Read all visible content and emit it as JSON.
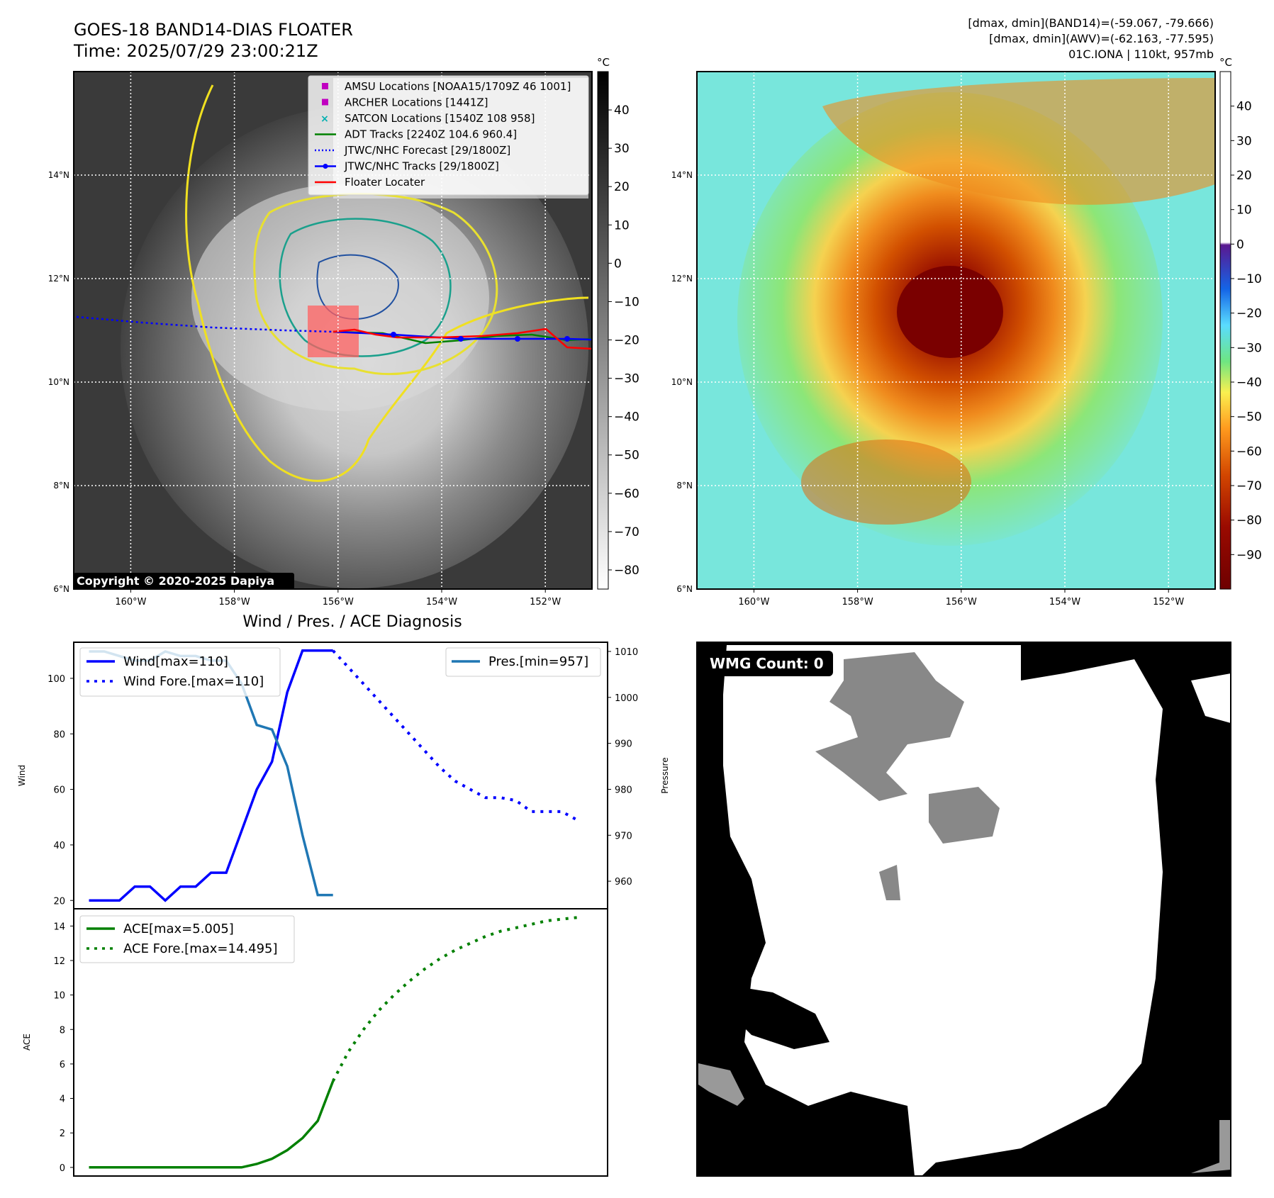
{
  "header": {
    "title": "GOES-18 BAND14-DIAS FLOATER",
    "time": "Time: 2025/07/29 23:00:21Z",
    "info1": "[dmax, dmin](BAND14)=(-59.067, -79.666)",
    "info2": "[dmax, dmin](AWV)=(-62.163, -77.595)",
    "info3": "01C.IONA | 110kt, 957mb"
  },
  "map_axes": {
    "lon_ticks": [
      "160°W",
      "158°W",
      "156°W",
      "154°W",
      "152°W"
    ],
    "lat_ticks": [
      "14°N",
      "12°N",
      "10°N",
      "8°N",
      "6°N"
    ],
    "lon_range": [
      -161.1,
      -151.1
    ],
    "lat_range": [
      6.0,
      16.0
    ]
  },
  "colorbar": {
    "unit": "°C",
    "left_ticks": [
      "40",
      "30",
      "20",
      "10",
      "0",
      "−10",
      "−20",
      "−30",
      "−40",
      "−50",
      "−60",
      "−70",
      "−80"
    ],
    "right_ticks": [
      "40",
      "30",
      "20",
      "10",
      "0",
      "−10",
      "−20",
      "−30",
      "−40",
      "−50",
      "−60",
      "−70",
      "−80",
      "−90"
    ]
  },
  "legend": {
    "items": [
      {
        "label": "AMSU Locations [NOAA15/1709Z 46 1001]",
        "color": "#c000c0",
        "kind": "square"
      },
      {
        "label": "ARCHER Locations [1441Z]",
        "color": "#c000c0",
        "kind": "square"
      },
      {
        "label": "SATCON Locations [1540Z 108 958]",
        "color": "#00b0b0",
        "kind": "x"
      },
      {
        "label": "ADT Tracks [2240Z 104.6 960.4]",
        "color": "#008000",
        "kind": "line"
      },
      {
        "label": "JTWC/NHC Forecast [29/1800Z]",
        "color": "#0000ff",
        "kind": "dotted"
      },
      {
        "label": "JTWC/NHC Tracks [29/1800Z]",
        "color": "#0000ff",
        "kind": "line-dot"
      },
      {
        "label": "Floater Locater",
        "color": "#ff0000",
        "kind": "line"
      }
    ]
  },
  "copyright": "Copyright © 2020-2025 Dapiya",
  "wmg": {
    "label": "WMG Count: 0"
  },
  "diagnosis": {
    "title": "Wind / Pres. / ACE Diagnosis"
  },
  "chart_data": [
    {
      "type": "line",
      "title": "Wind / Pres. / ACE Diagnosis",
      "ylabel": "Wind",
      "y2label": "Pressure",
      "ylim": [
        17,
        113
      ],
      "y2lim": [
        954,
        1012
      ],
      "yticks": [
        20,
        40,
        60,
        80,
        100
      ],
      "y2ticks": [
        960,
        970,
        980,
        990,
        1000,
        1010
      ],
      "series": [
        {
          "name": "Wind[max=110]",
          "color": "#0000ff",
          "style": "solid",
          "axis": "left",
          "x": [
            0,
            1,
            2,
            3,
            4,
            5,
            6,
            7,
            8,
            9,
            10,
            11,
            12,
            13,
            14,
            15,
            16
          ],
          "values": [
            20,
            20,
            20,
            25,
            25,
            20,
            25,
            25,
            30,
            30,
            45,
            60,
            70,
            95,
            110,
            110,
            110
          ]
        },
        {
          "name": "Wind Fore.[max=110]",
          "color": "#0000ff",
          "style": "dotted",
          "axis": "left",
          "x": [
            16,
            17,
            18,
            19,
            20,
            21,
            22,
            23,
            24,
            25,
            26,
            27,
            28,
            29,
            30,
            31,
            32
          ],
          "values": [
            110,
            104,
            98,
            92,
            86,
            80,
            74,
            68,
            63,
            60,
            57,
            57,
            56,
            52,
            52,
            52,
            49
          ]
        },
        {
          "name": "Pres.[min=957]",
          "color": "#1f77b4",
          "style": "solid",
          "axis": "right",
          "x": [
            0,
            1,
            2,
            3,
            4,
            5,
            6,
            7,
            8,
            9,
            10,
            11,
            12,
            13,
            14,
            15,
            16
          ],
          "values": [
            1010,
            1010,
            1009,
            1008,
            1008,
            1010,
            1009,
            1009,
            1008,
            1008,
            1003,
            994,
            993,
            985,
            970,
            957,
            957
          ]
        }
      ]
    },
    {
      "type": "line",
      "ylabel": "ACE",
      "ylim": [
        -0.5,
        15
      ],
      "yticks": [
        0,
        2,
        4,
        6,
        8,
        10,
        12,
        14
      ],
      "series": [
        {
          "name": "ACE[max=5.005]",
          "color": "#008000",
          "style": "solid",
          "x": [
            0,
            1,
            2,
            3,
            4,
            5,
            6,
            7,
            8,
            9,
            10,
            11,
            12,
            13,
            14,
            15,
            16
          ],
          "values": [
            0,
            0,
            0,
            0,
            0,
            0,
            0,
            0,
            0,
            0,
            0,
            0.2,
            0.5,
            1.0,
            1.7,
            2.7,
            5.005
          ]
        },
        {
          "name": "ACE Fore.[max=14.495]",
          "color": "#008000",
          "style": "dotted",
          "x": [
            16,
            17,
            18,
            19,
            20,
            21,
            22,
            23,
            24,
            25,
            26,
            27,
            28,
            29,
            30,
            31,
            32
          ],
          "values": [
            5.005,
            6.7,
            8.0,
            9.1,
            10.0,
            10.8,
            11.5,
            12.1,
            12.6,
            13.0,
            13.4,
            13.7,
            13.9,
            14.1,
            14.3,
            14.4,
            14.495
          ]
        }
      ]
    }
  ]
}
